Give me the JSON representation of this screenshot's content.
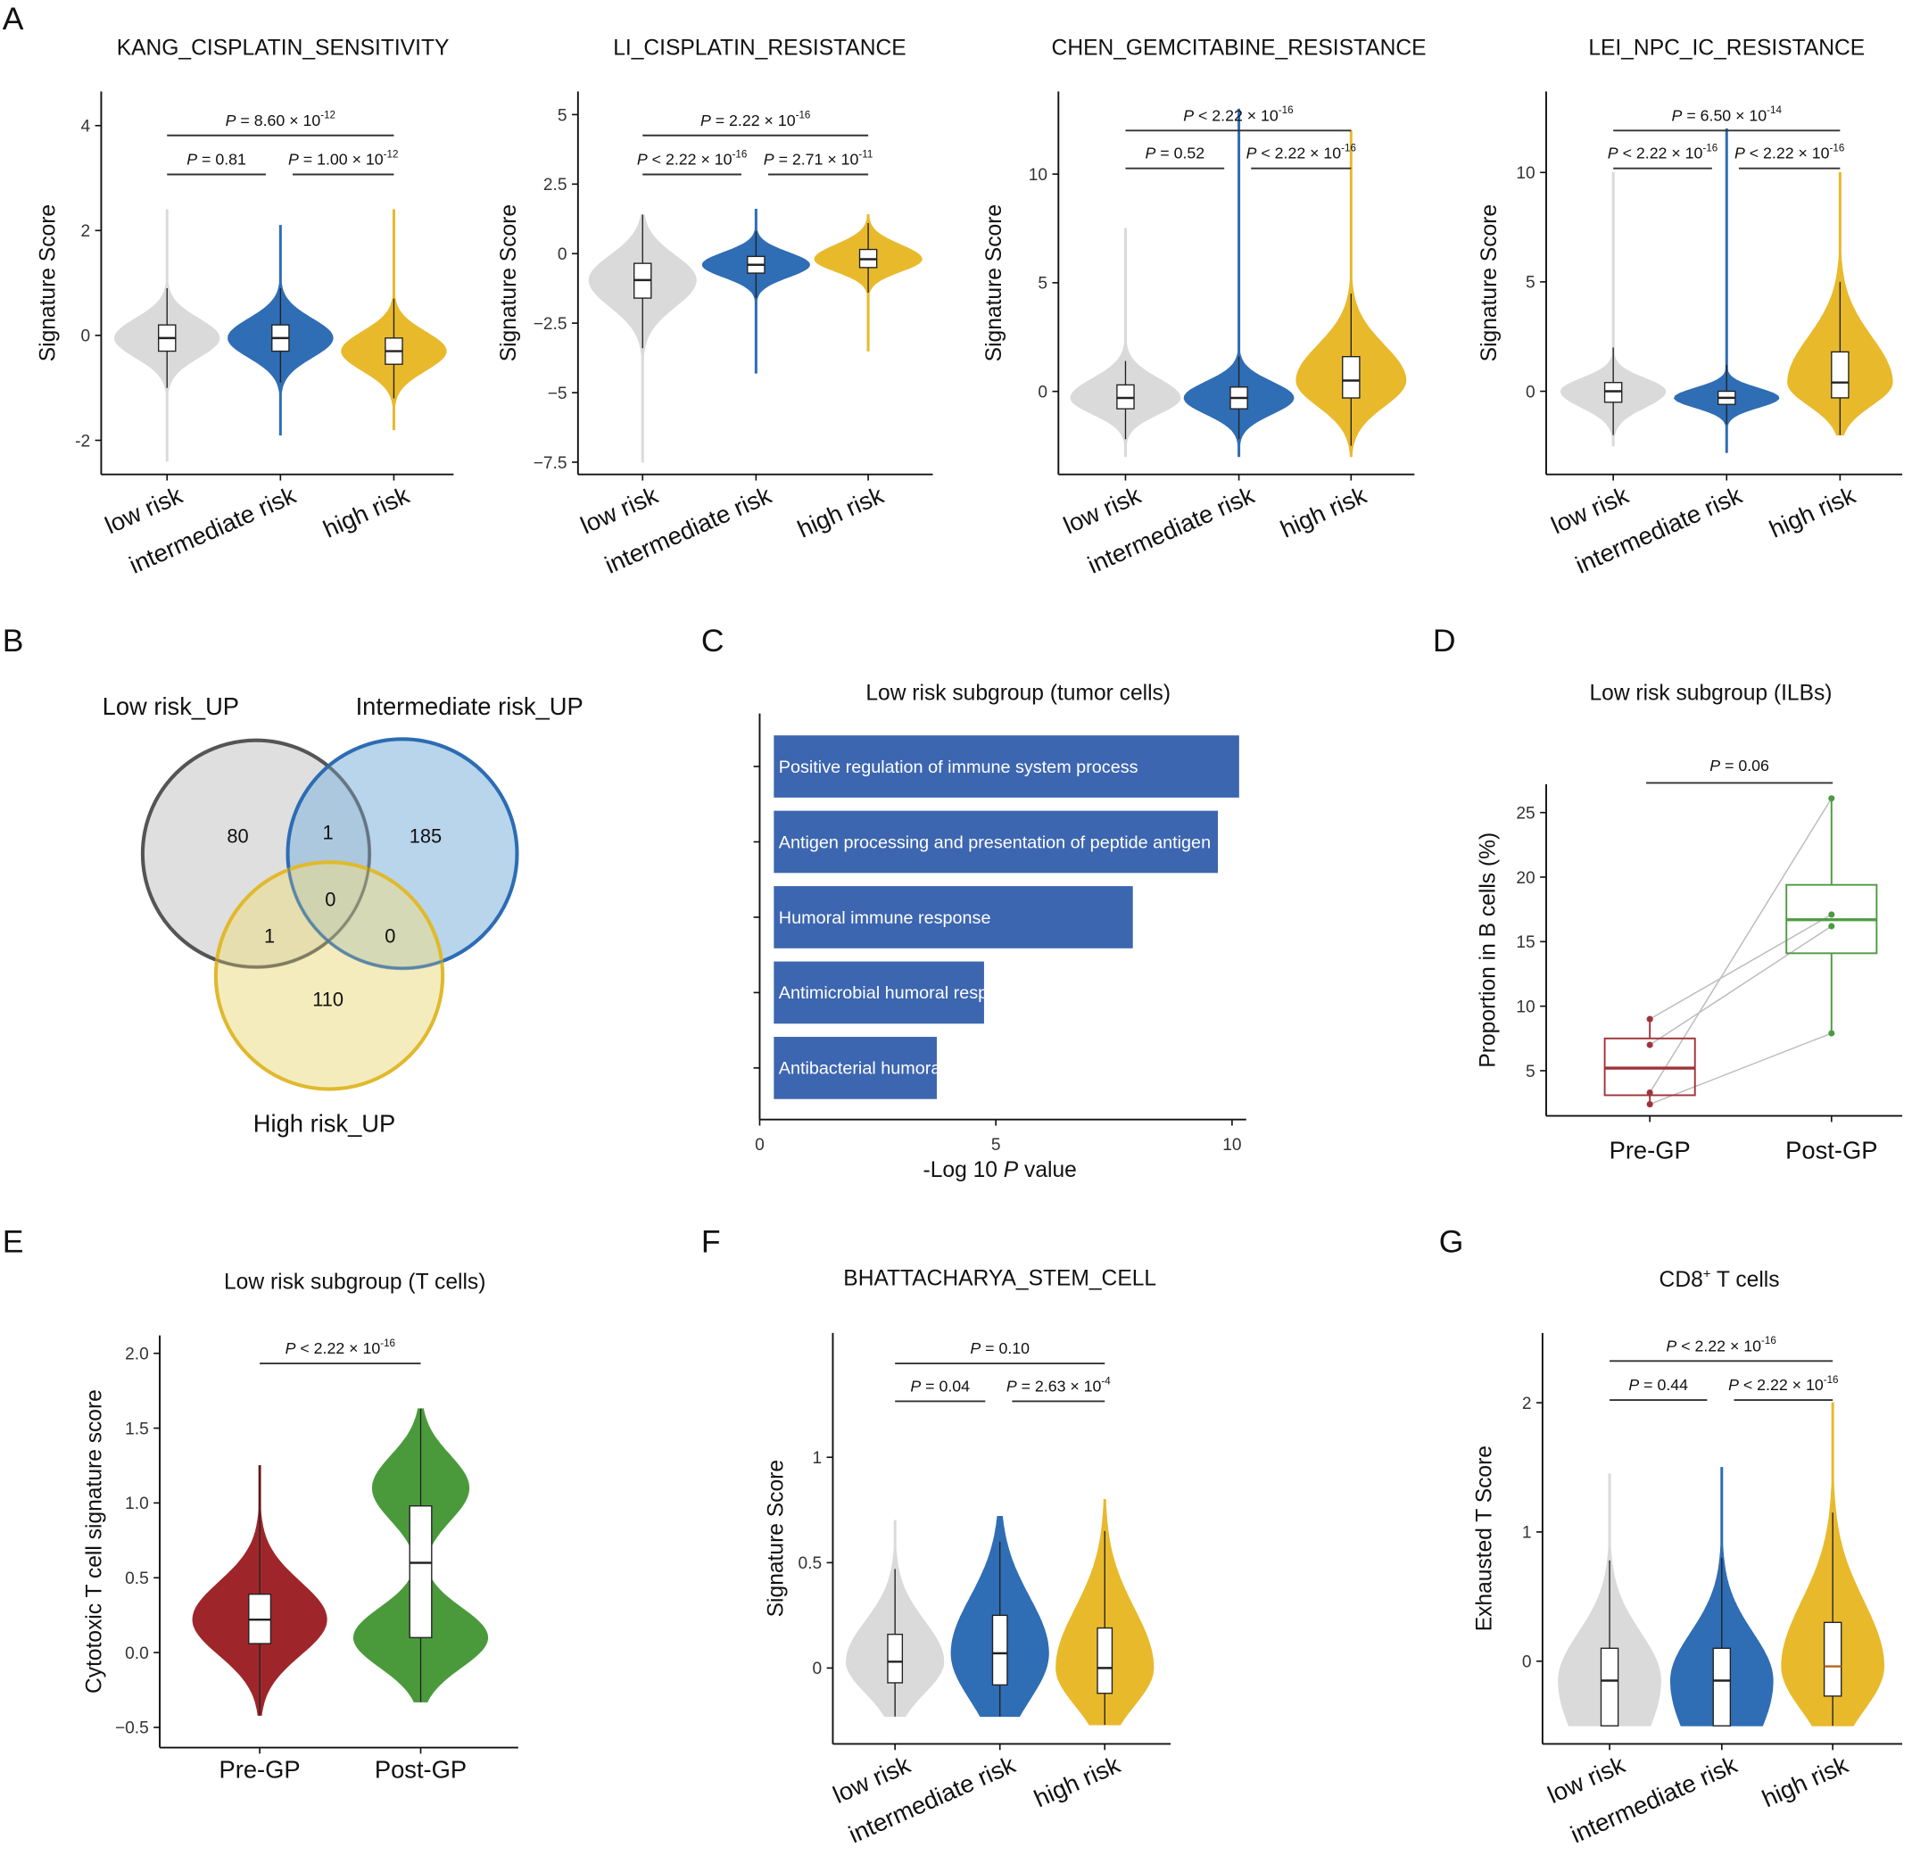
{
  "panel_labels": {
    "A": "A",
    "B": "B",
    "C": "C",
    "D": "D",
    "E": "E",
    "F": "F",
    "G": "G"
  },
  "p_symbol": "P",
  "chart_data": [
    {
      "id": "A1",
      "type": "violin",
      "title": "KANG_CISPLATIN_SENSITIVITY",
      "ylabel": "Signature Score",
      "categories": [
        "low risk",
        "intermediate risk",
        "high risk"
      ],
      "yticks": [
        -2,
        0,
        2,
        4
      ],
      "ylim": [
        -2.65,
        4.65
      ],
      "colors": [
        "#dadada",
        "#2f6db5",
        "#e9b92c"
      ],
      "violins": [
        {
          "min": -2.4,
          "max": 2.4,
          "q1": -0.3,
          "median": -0.05,
          "q3": 0.2,
          "wlo": -1.0,
          "whi": 0.9
        },
        {
          "min": -1.9,
          "max": 2.1,
          "q1": -0.3,
          "median": -0.05,
          "q3": 0.2,
          "wlo": -0.9,
          "whi": 0.9
        },
        {
          "min": -1.8,
          "max": 2.4,
          "q1": -0.55,
          "median": -0.3,
          "q3": -0.05,
          "wlo": -1.2,
          "whi": 0.7
        }
      ],
      "comparisons": [
        {
          "from": 0,
          "to": 2,
          "p": {
            "rel": "= 8.60 × 10",
            "exp": "-12"
          }
        },
        {
          "from": 0,
          "to": 1,
          "p": {
            "rel": "= 0.81",
            "exp": ""
          }
        },
        {
          "from": 1,
          "to": 2,
          "p": {
            "rel": "= 1.00 × 10",
            "exp": "-12"
          }
        }
      ]
    },
    {
      "id": "A2",
      "type": "violin",
      "title": "LI_CISPLATIN_RESISTANCE",
      "ylabel": "Signature Score",
      "categories": [
        "low risk",
        "intermediate risk",
        "high risk"
      ],
      "yticks": [
        -7.5,
        -5,
        -2.5,
        0,
        2.5,
        5
      ],
      "ytick_labels": [
        "−7.5",
        "−5",
        "−2.5",
        "0",
        "2.5",
        "5"
      ],
      "ylim": [
        -7.94,
        5.83
      ],
      "colors": [
        "#dadada",
        "#2f6db5",
        "#e9b92c"
      ],
      "violins": [
        {
          "min": -7.5,
          "max": 1.4,
          "q1": -1.6,
          "median": -0.95,
          "q3": -0.35,
          "wlo": -3.4,
          "whi": 1.4
        },
        {
          "min": -4.3,
          "max": 1.6,
          "q1": -0.7,
          "median": -0.4,
          "q3": -0.1,
          "wlo": -1.6,
          "whi": 0.8
        },
        {
          "min": -3.5,
          "max": 1.4,
          "q1": -0.5,
          "median": -0.2,
          "q3": 0.15,
          "wlo": -1.4,
          "whi": 1.1
        }
      ],
      "comparisons": [
        {
          "from": 0,
          "to": 2,
          "p": {
            "rel": "= 2.22 × 10",
            "exp": "-16"
          }
        },
        {
          "from": 0,
          "to": 1,
          "p": {
            "rel": "< 2.22 × 10",
            "exp": "-16"
          }
        },
        {
          "from": 1,
          "to": 2,
          "p": {
            "rel": "= 2.71 × 10",
            "exp": "-11"
          }
        }
      ]
    },
    {
      "id": "A3",
      "type": "violin",
      "title": "CHEN_GEMCITABINE_RESISTANCE",
      "ylabel": "Signature Score",
      "categories": [
        "low risk",
        "intermediate risk",
        "high risk"
      ],
      "yticks": [
        0,
        5,
        10
      ],
      "ylim": [
        -3.82,
        13.8
      ],
      "colors": [
        "#dadada",
        "#2f6db5",
        "#e9b92c"
      ],
      "violins": [
        {
          "min": -3.0,
          "max": 7.5,
          "q1": -0.8,
          "median": -0.3,
          "q3": 0.3,
          "wlo": -2.2,
          "whi": 1.4
        },
        {
          "min": -3.0,
          "max": 13.0,
          "q1": -0.8,
          "median": -0.3,
          "q3": 0.2,
          "wlo": -2.2,
          "whi": 1.6
        },
        {
          "min": -3.0,
          "max": 12.0,
          "q1": -0.3,
          "median": 0.5,
          "q3": 1.6,
          "wlo": -2.5,
          "whi": 4.5
        }
      ],
      "comparisons": [
        {
          "from": 0,
          "to": 2,
          "p": {
            "rel": "< 2.22 × 10",
            "exp": "-16"
          }
        },
        {
          "from": 0,
          "to": 1,
          "p": {
            "rel": "= 0.52",
            "exp": ""
          }
        },
        {
          "from": 1,
          "to": 2,
          "p": {
            "rel": "< 2.22 × 10",
            "exp": "-16"
          }
        }
      ]
    },
    {
      "id": "A4",
      "type": "violin",
      "title": "LEI_NPC_IC_RESISTANCE",
      "ylabel": "Signature Score",
      "categories": [
        "low risk",
        "intermediate risk",
        "high risk"
      ],
      "yticks": [
        0,
        5,
        10
      ],
      "ylim": [
        -3.8,
        13.7
      ],
      "colors": [
        "#dadada",
        "#2f6db5",
        "#e9b92c"
      ],
      "violins": [
        {
          "min": -2.5,
          "max": 10.0,
          "q1": -0.5,
          "median": 0.0,
          "q3": 0.4,
          "wlo": -2.0,
          "whi": 2.0
        },
        {
          "min": -2.8,
          "max": 12.0,
          "q1": -0.6,
          "median": -0.3,
          "q3": 0.0,
          "wlo": -1.5,
          "whi": 1.2
        },
        {
          "min": -2.0,
          "max": 10.0,
          "q1": -0.3,
          "median": 0.4,
          "q3": 1.8,
          "wlo": -2.0,
          "whi": 5.0
        }
      ],
      "comparisons": [
        {
          "from": 0,
          "to": 2,
          "p": {
            "rel": "= 6.50 × 10",
            "exp": "-14"
          }
        },
        {
          "from": 0,
          "to": 1,
          "p": {
            "rel": "< 2.22 × 10",
            "exp": "-16"
          }
        },
        {
          "from": 1,
          "to": 2,
          "p": {
            "rel": "< 2.22 × 10",
            "exp": "-16"
          }
        }
      ]
    },
    {
      "id": "B",
      "type": "venn",
      "sets": [
        "Low risk_UP",
        "Intermediate risk_UP",
        "High risk_UP"
      ],
      "colors": [
        "#d9d9d9",
        "#8ab9dd",
        "#ecdc88"
      ],
      "regions": {
        "low_only": 80,
        "low_intermediate": 1,
        "intermediate_only": 185,
        "all_three": 0,
        "low_high": 1,
        "intermediate_high": 0,
        "high_only": 110
      }
    },
    {
      "id": "C",
      "type": "bar",
      "orientation": "horizontal",
      "title": "Low risk subgroup (tumor cells)",
      "xlabel_prefix": "-Log 10 ",
      "xlabel_italic": "P",
      "xlabel_suffix": " value",
      "xticks": [
        0,
        5,
        10
      ],
      "xlim": [
        0,
        10.3
      ],
      "color": "#3d66b0",
      "categories": [
        "Positive regulation of immune system process",
        "Antigen processing and presentation of peptide antigen",
        "Humoral immune response",
        "Antimicrobial humoral response",
        "Antibacterial humoral response"
      ],
      "values": [
        10.15,
        9.7,
        7.9,
        4.75,
        3.75
      ]
    },
    {
      "id": "D",
      "type": "box",
      "title": "Low risk subgroup (ILBs)",
      "ylabel": "Proportion in B cells (%)",
      "categories": [
        "Pre-GP",
        "Post-GP"
      ],
      "colors": [
        "#a0333a",
        "#4e9a43"
      ],
      "yticks": [
        5,
        10,
        15,
        20,
        25
      ],
      "ylim": [
        1.5,
        27.2
      ],
      "boxes": [
        {
          "q1": 3.1,
          "median": 5.2,
          "q3": 7.5,
          "wlo": 2.4,
          "whi": 9.0
        },
        {
          "q1": 14.1,
          "median": 16.7,
          "q3": 19.4,
          "wlo": 7.9,
          "whi": 26.1
        }
      ],
      "pairs": [
        [
          9.0,
          17.1
        ],
        [
          7.0,
          16.2
        ],
        [
          3.3,
          26.1
        ],
        [
          2.4,
          7.9
        ]
      ],
      "comparisons": [
        {
          "from": 0,
          "to": 1,
          "p": {
            "rel": "= 0.06",
            "exp": ""
          }
        }
      ]
    },
    {
      "id": "E",
      "type": "violin",
      "title": "Low risk subgroup (T cells)",
      "ylabel": "Cytotoxic T cell signature score",
      "categories": [
        "Pre-GP",
        "Post-GP"
      ],
      "yticks": [
        -0.5,
        0,
        0.5,
        1,
        1.5,
        2
      ],
      "ytick_labels": [
        "−0.5",
        "0.0",
        "0.5",
        "1.0",
        "1.5",
        "2.0"
      ],
      "ylim": [
        -0.635,
        2.12
      ],
      "colors": [
        "#9e262b",
        "#4a9a3c"
      ],
      "violins": [
        {
          "min": -0.42,
          "max": 1.25,
          "q1": 0.06,
          "median": 0.22,
          "q3": 0.39,
          "wlo": -0.42,
          "whi": 1.25
        },
        {
          "min": -0.33,
          "max": 1.63,
          "q1": 0.1,
          "median": 0.6,
          "q3": 0.98,
          "wlo": -0.33,
          "whi": 1.63,
          "peaks": [
            [
              0.1,
              0.2,
              1
            ],
            [
              1.1,
              0.22,
              0.72
            ]
          ]
        }
      ],
      "comparisons": [
        {
          "from": 0,
          "to": 1,
          "p": {
            "rel": "< 2.22 × 10",
            "exp": "-16"
          }
        }
      ]
    },
    {
      "id": "F",
      "type": "violin",
      "title": "BHATTACHARYA_STEM_CELL",
      "ylabel": "Signature Score",
      "categories": [
        "low risk",
        "intermediate risk",
        "high risk"
      ],
      "yticks": [
        0,
        0.5,
        1
      ],
      "ylim": [
        -0.36,
        1.59
      ],
      "colors": [
        "#dadada",
        "#2f6db5",
        "#e9b92c"
      ],
      "violins": [
        {
          "min": -0.23,
          "max": 0.7,
          "q1": -0.07,
          "median": 0.03,
          "q3": 0.16,
          "wlo": -0.23,
          "whi": 0.47
        },
        {
          "min": -0.23,
          "max": 0.72,
          "q1": -0.08,
          "median": 0.07,
          "q3": 0.25,
          "wlo": -0.23,
          "whi": 0.6
        },
        {
          "min": -0.27,
          "max": 0.8,
          "q1": -0.12,
          "median": 0.0,
          "q3": 0.19,
          "wlo": -0.27,
          "whi": 0.65
        }
      ],
      "comparisons": [
        {
          "from": 0,
          "to": 2,
          "p": {
            "rel": "= 0.10",
            "exp": ""
          }
        },
        {
          "from": 0,
          "to": 1,
          "p": {
            "rel": "= 0.04",
            "exp": ""
          }
        },
        {
          "from": 1,
          "to": 2,
          "p": {
            "rel": "= 2.63 × 10",
            "exp": "-4"
          }
        }
      ]
    },
    {
      "id": "G",
      "type": "violin",
      "title": "CD8",
      "title_sup": "+",
      "title_suffix": " T cells",
      "ylabel": "Exhausted T Score",
      "categories": [
        "low risk",
        "intermediate risk",
        "high risk"
      ],
      "yticks": [
        0,
        1,
        2
      ],
      "ylim": [
        -0.64,
        2.54
      ],
      "colors": [
        "#dadada",
        "#2f6db5",
        "#e9b92c"
      ],
      "median_colors": [
        "#222",
        "#222",
        "#b5651d"
      ],
      "violins": [
        {
          "min": -0.5,
          "max": 1.45,
          "q1": -0.5,
          "median": -0.15,
          "q3": 0.1,
          "wlo": -0.5,
          "whi": 0.78
        },
        {
          "min": -0.5,
          "max": 1.5,
          "q1": -0.5,
          "median": -0.15,
          "q3": 0.1,
          "wlo": -0.5,
          "whi": 0.8
        },
        {
          "min": -0.5,
          "max": 2.0,
          "q1": -0.27,
          "median": -0.04,
          "q3": 0.3,
          "wlo": -0.5,
          "whi": 1.15
        }
      ],
      "comparisons": [
        {
          "from": 0,
          "to": 2,
          "p": {
            "rel": "< 2.22 × 10",
            "exp": "-16"
          }
        },
        {
          "from": 0,
          "to": 1,
          "p": {
            "rel": "= 0.44",
            "exp": ""
          }
        },
        {
          "from": 1,
          "to": 2,
          "p": {
            "rel": "< 2.22 × 10",
            "exp": "-16"
          }
        }
      ]
    }
  ]
}
